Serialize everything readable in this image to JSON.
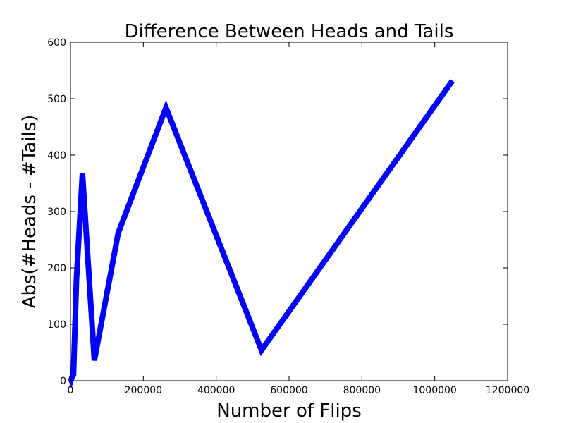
{
  "chart_data": {
    "type": "line",
    "title": "Difference Between Heads and Tails",
    "xlabel": "Number of Flips",
    "ylabel": "Abs(#Heads - #Tails)",
    "xlim": [
      0,
      1200000
    ],
    "ylim": [
      0,
      600
    ],
    "xticks": [
      0,
      200000,
      400000,
      600000,
      800000,
      1000000,
      1200000
    ],
    "xtick_labels": [
      "0",
      "200000",
      "400000",
      "600000",
      "800000",
      "1000000",
      "1200000"
    ],
    "yticks": [
      0,
      100,
      200,
      300,
      400,
      500,
      600
    ],
    "ytick_labels": [
      "0",
      "100",
      "200",
      "300",
      "400",
      "500",
      "600"
    ],
    "grid": false,
    "series": [
      {
        "color": "#0000ff",
        "x": [
          1024,
          2048,
          4096,
          8192,
          16384,
          32768,
          65536,
          131072,
          262144,
          524288,
          1048576
        ],
        "y": [
          4,
          2,
          6,
          10,
          180,
          368,
          36,
          262,
          484,
          54,
          532
        ]
      }
    ]
  }
}
